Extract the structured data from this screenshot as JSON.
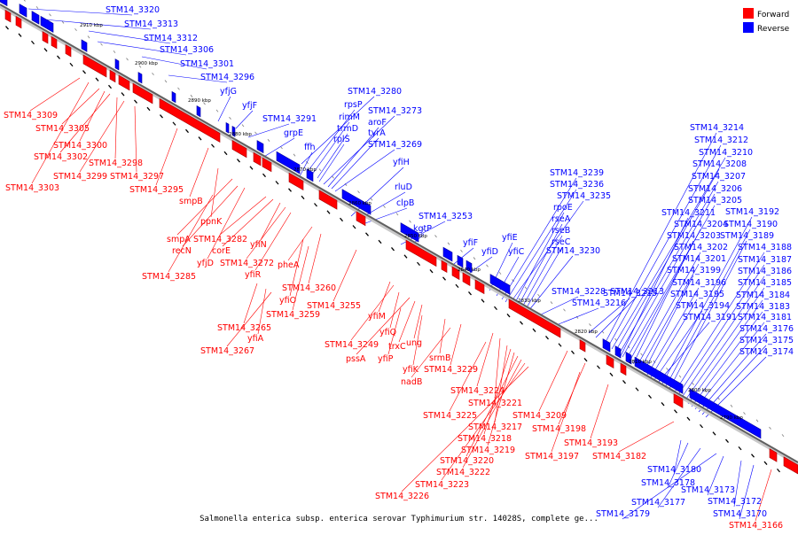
{
  "caption": "Salmonella enterica subsp. enterica serovar Typhimurium str. 14028S, complete ge...",
  "legend": [
    {
      "label": "Forward",
      "color": "#ff0000"
    },
    {
      "label": "Reverse",
      "color": "#0000ff"
    }
  ],
  "kbp_marks": [
    "2910 kbp",
    "2900 kbp",
    "2890 kbp",
    "2880 kbp",
    "2870 kbp",
    "2860 kbp",
    "2850 kbp",
    "2840 kbp",
    "2830 kbp",
    "2820 kbp",
    "2810 kbp",
    "2800 kbp",
    "2790 kbp"
  ],
  "reverse_labels": [
    "STM14_3320",
    "STM14_3313",
    "STM14_3312",
    "STM14_3306",
    "STM14_3301",
    "STM14_3296",
    "yfjG",
    "yfjF",
    "STM14_3291",
    "grpE",
    "STM14_3280",
    "rpsP",
    "rimM",
    "trmD",
    "rplS",
    "STM14_3273",
    "aroF",
    "tyrA",
    "ffh",
    "STM14_3269",
    "yfiH",
    "rluD",
    "clpB",
    "STM14_3253",
    "kgtP",
    "yfiF",
    "yfiD",
    "yfiE",
    "yfiC",
    "STM14_3239",
    "STM14_3236",
    "STM14_3235",
    "rpoE",
    "rseA",
    "rseB",
    "rseC",
    "STM14_3230",
    "STM14_3228",
    "STM14_3216",
    "STM14_3215",
    "STM14_3213",
    "STM14_3214",
    "STM14_3212",
    "STM14_3210",
    "STM14_3208",
    "STM14_3207",
    "STM14_3206",
    "STM14_3205",
    "STM14_3211",
    "STM14_3204",
    "STM14_3203",
    "STM14_3202",
    "STM14_3201",
    "STM14_3199",
    "STM14_3196",
    "STM14_3195",
    "STM14_3194",
    "STM14_3191",
    "STM14_3192",
    "STM14_3190",
    "STM14_3189",
    "STM14_3188",
    "STM14_3187",
    "STM14_3186",
    "STM14_3185",
    "STM14_3184",
    "STM14_3183",
    "STM14_3181",
    "STM14_3176",
    "STM14_3175",
    "STM14_3174",
    "STM14_3180",
    "STM14_3178",
    "STM14_3177",
    "STM14_3179",
    "STM14_3173",
    "STM14_3172",
    "STM14_3170"
  ],
  "forward_labels": [
    "STM14_3309",
    "STM14_3305",
    "STM14_3300",
    "STM14_3302",
    "STM14_3298",
    "STM14_3299",
    "STM14_3297",
    "STM14_3303",
    "STM14_3295",
    "smpB",
    "ppnK",
    "smpA",
    "recN",
    "STM14_3282",
    "corE",
    "yfiN",
    "yfjD",
    "STM14_3272",
    "yfiR",
    "STM14_3285",
    "pheA",
    "STM14_3260",
    "yfiO",
    "STM14_3255",
    "STM14_3259",
    "yfiM",
    "STM14_3265",
    "yfiA",
    "STM14_3267",
    "STM14_3249",
    "yfiQ",
    "pssA",
    "trxC",
    "ung",
    "yfiP",
    "yfiK",
    "srmB",
    "STM14_3229",
    "nadB",
    "STM14_3224",
    "STM14_3221",
    "STM14_3225",
    "STM14_3209",
    "STM14_3217",
    "STM14_3198",
    "STM14_3218",
    "STM14_3219",
    "STM14_3193",
    "STM14_3197",
    "STM14_3220",
    "STM14_3182",
    "STM14_3222",
    "STM14_3223",
    "STM14_3226",
    "STM14_3166"
  ]
}
